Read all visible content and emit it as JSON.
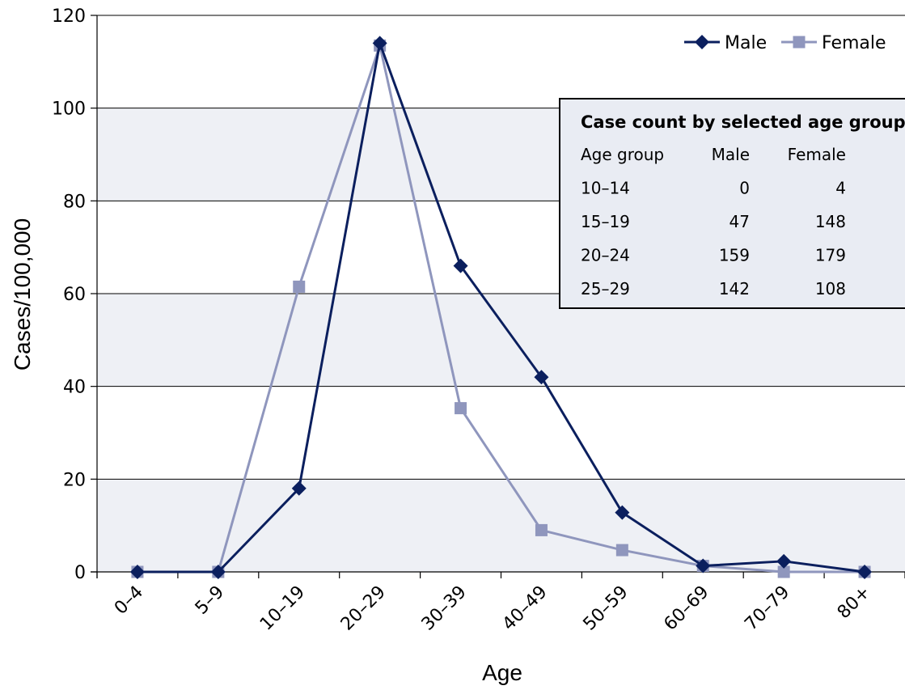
{
  "chart_data": {
    "type": "line",
    "categories": [
      "0–4",
      "5–9",
      "10–19",
      "20–29",
      "30–39",
      "40–49",
      "50–59",
      "60–69",
      "70–79",
      "80+"
    ],
    "series": [
      {
        "name": "Male",
        "values": [
          0,
          0,
          18,
          114,
          66,
          42,
          12.8,
          1.3,
          2.3,
          0
        ],
        "color": "#0b1f5e",
        "marker": "diamond"
      },
      {
        "name": "Female",
        "values": [
          0,
          0,
          61.5,
          113.5,
          35.3,
          9,
          4.7,
          1.3,
          0,
          0
        ],
        "color": "#8f96bd",
        "marker": "square"
      }
    ],
    "title": "",
    "xlabel": "Age",
    "ylabel": "Cases/100,000",
    "ylim": [
      0,
      120
    ],
    "yticks": [
      0,
      20,
      40,
      60,
      80,
      100,
      120
    ],
    "grid": true,
    "legend_position": "top-right",
    "colors": {
      "band": "#eef0f5",
      "gridline": "#000000"
    },
    "inset_table": {
      "title": "Case count by selected age group",
      "headers": [
        "Age group",
        "Male",
        "Female"
      ],
      "rows": [
        [
          "10–14",
          "0",
          "4"
        ],
        [
          "15–19",
          "47",
          "148"
        ],
        [
          "20–24",
          "159",
          "179"
        ],
        [
          "25–29",
          "142",
          "108"
        ]
      ],
      "background": "#e9ecf3"
    }
  }
}
